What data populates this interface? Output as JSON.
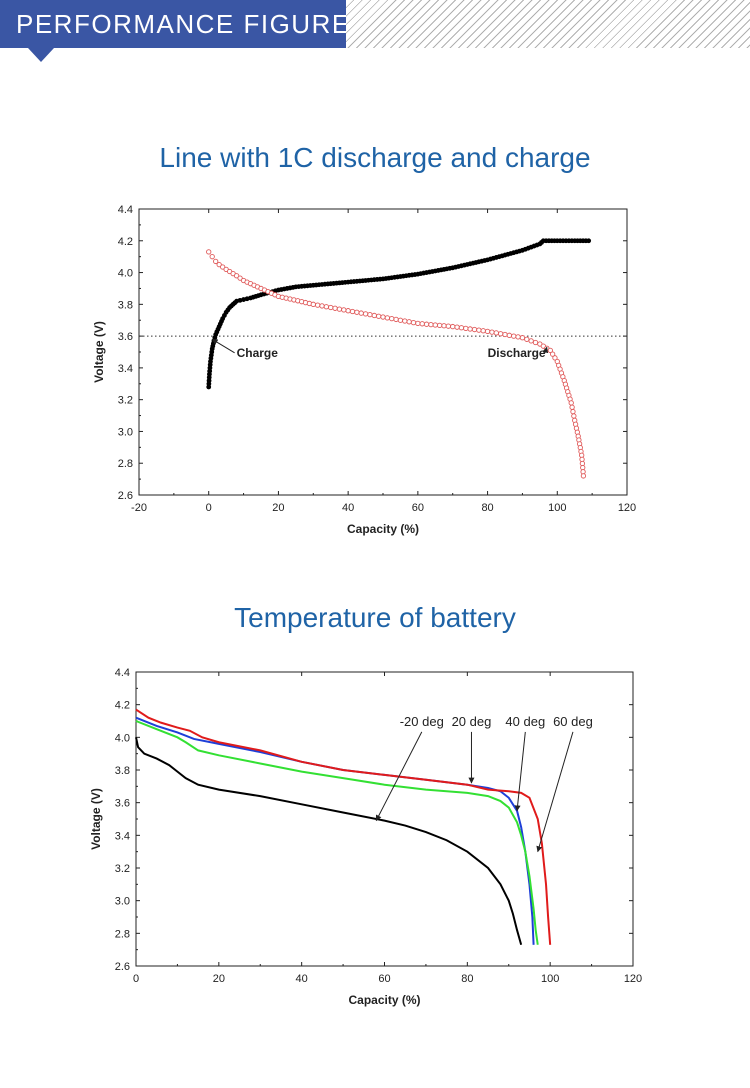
{
  "header": {
    "title": "PERFORMANCE FIGURE",
    "accent_color": "#3a56a4"
  },
  "sections": [
    {
      "title": "Line with 1C discharge and charge"
    },
    {
      "title": "Temperature of battery"
    }
  ],
  "chart_data": [
    {
      "type": "scatter",
      "title": "Line with 1C discharge and charge",
      "xlabel": "Capacity (%)",
      "ylabel": "Voltage (V)",
      "xlim": [
        -20,
        120
      ],
      "ylim": [
        2.6,
        4.4
      ],
      "xticks": [
        -20,
        0,
        20,
        40,
        60,
        80,
        100,
        120
      ],
      "yticks": [
        2.6,
        2.8,
        3.0,
        3.2,
        3.4,
        3.6,
        3.8,
        4.0,
        4.2,
        4.4
      ],
      "reference_line": {
        "y": 3.6,
        "style": "dotted"
      },
      "series": [
        {
          "name": "Charge",
          "color": "#000000",
          "marker": "filled-circle",
          "x": [
            0,
            0.2,
            0.5,
            1,
            1.5,
            2,
            3,
            4,
            5,
            6,
            7,
            8,
            10,
            12,
            15,
            20,
            25,
            30,
            40,
            50,
            60,
            70,
            80,
            90,
            95,
            96,
            100,
            105,
            109
          ],
          "y": [
            3.28,
            3.36,
            3.44,
            3.52,
            3.57,
            3.61,
            3.66,
            3.71,
            3.75,
            3.78,
            3.8,
            3.82,
            3.83,
            3.84,
            3.86,
            3.89,
            3.91,
            3.92,
            3.94,
            3.96,
            3.99,
            4.03,
            4.08,
            4.14,
            4.18,
            4.2,
            4.2,
            4.2,
            4.2
          ]
        },
        {
          "name": "Discharge",
          "color": "#e05a5a",
          "marker": "open-circle",
          "x": [
            0,
            1,
            2,
            3,
            5,
            8,
            10,
            15,
            20,
            30,
            40,
            50,
            60,
            70,
            80,
            85,
            90,
            95,
            98,
            100,
            102,
            104,
            105,
            106,
            107,
            107.5
          ],
          "y": [
            4.13,
            4.1,
            4.07,
            4.05,
            4.02,
            3.98,
            3.95,
            3.9,
            3.85,
            3.8,
            3.76,
            3.72,
            3.68,
            3.66,
            3.63,
            3.61,
            3.59,
            3.55,
            3.51,
            3.44,
            3.32,
            3.18,
            3.07,
            2.97,
            2.85,
            2.72
          ]
        }
      ],
      "annotations": [
        {
          "text": "Charge",
          "x": 8,
          "y": 3.47,
          "arrow_to": [
            1,
            3.58
          ]
        },
        {
          "text": "Discharge",
          "x": 80,
          "y": 3.47,
          "arrow_to": [
            97,
            3.53
          ]
        }
      ]
    },
    {
      "type": "line",
      "title": "Temperature of battery",
      "xlabel": "Capacity (%)",
      "ylabel": "Voltage (V)",
      "xlim": [
        0,
        120
      ],
      "ylim": [
        2.6,
        4.4
      ],
      "xticks": [
        0,
        20,
        40,
        60,
        80,
        100,
        120
      ],
      "yticks": [
        2.6,
        2.8,
        3.0,
        3.2,
        3.4,
        3.6,
        3.8,
        4.0,
        4.2,
        4.4
      ],
      "series": [
        {
          "name": "-20 deg",
          "color": "#000000",
          "x": [
            0,
            0.5,
            2,
            5,
            8,
            10,
            12,
            15,
            20,
            30,
            40,
            50,
            60,
            65,
            70,
            75,
            80,
            85,
            88,
            90,
            91,
            92,
            93
          ],
          "y": [
            4.0,
            3.94,
            3.9,
            3.87,
            3.83,
            3.79,
            3.75,
            3.71,
            3.68,
            3.64,
            3.59,
            3.54,
            3.49,
            3.46,
            3.42,
            3.37,
            3.3,
            3.2,
            3.1,
            3.0,
            2.92,
            2.82,
            2.73
          ]
        },
        {
          "name": "20 deg",
          "color": "#1e3fd8",
          "x": [
            0,
            5,
            10,
            14,
            20,
            30,
            40,
            50,
            60,
            70,
            80,
            85,
            88,
            90,
            92,
            93,
            94,
            95,
            95.7,
            96
          ],
          "y": [
            4.12,
            4.07,
            4.03,
            3.99,
            3.96,
            3.91,
            3.85,
            3.8,
            3.77,
            3.74,
            3.71,
            3.69,
            3.67,
            3.63,
            3.55,
            3.45,
            3.3,
            3.1,
            2.9,
            2.73
          ]
        },
        {
          "name": "40 deg",
          "color": "#33e033",
          "x": [
            0,
            5,
            10,
            12,
            15,
            20,
            30,
            40,
            50,
            60,
            70,
            80,
            85,
            88,
            90,
            92,
            93,
            94,
            95,
            96,
            96.5,
            97
          ],
          "y": [
            4.1,
            4.05,
            4.0,
            3.97,
            3.92,
            3.89,
            3.84,
            3.79,
            3.75,
            3.71,
            3.68,
            3.66,
            3.64,
            3.61,
            3.57,
            3.48,
            3.4,
            3.3,
            3.15,
            2.95,
            2.82,
            2.73
          ]
        },
        {
          "name": "60 deg",
          "color": "#e01b1b",
          "x": [
            0,
            3,
            6,
            10,
            13,
            16,
            20,
            30,
            40,
            50,
            60,
            70,
            80,
            85,
            90,
            93,
            95,
            97,
            98,
            99,
            99.5,
            100
          ],
          "y": [
            4.17,
            4.12,
            4.09,
            4.06,
            4.04,
            4.0,
            3.97,
            3.92,
            3.85,
            3.8,
            3.77,
            3.74,
            3.71,
            3.68,
            3.67,
            3.66,
            3.63,
            3.5,
            3.35,
            3.1,
            2.9,
            2.73
          ]
        }
      ],
      "annotations": [
        {
          "text": "-20 deg",
          "x": 69,
          "y": 4.07,
          "arrow_to": [
            58,
            3.49
          ]
        },
        {
          "text": "20 deg",
          "x": 81,
          "y": 4.07,
          "arrow_to": [
            81,
            3.72
          ]
        },
        {
          "text": "40 deg",
          "x": 94,
          "y": 4.07,
          "arrow_to": [
            92,
            3.55
          ]
        },
        {
          "text": "60 deg",
          "x": 105.5,
          "y": 4.07,
          "arrow_to": [
            97,
            3.3
          ]
        }
      ]
    }
  ]
}
